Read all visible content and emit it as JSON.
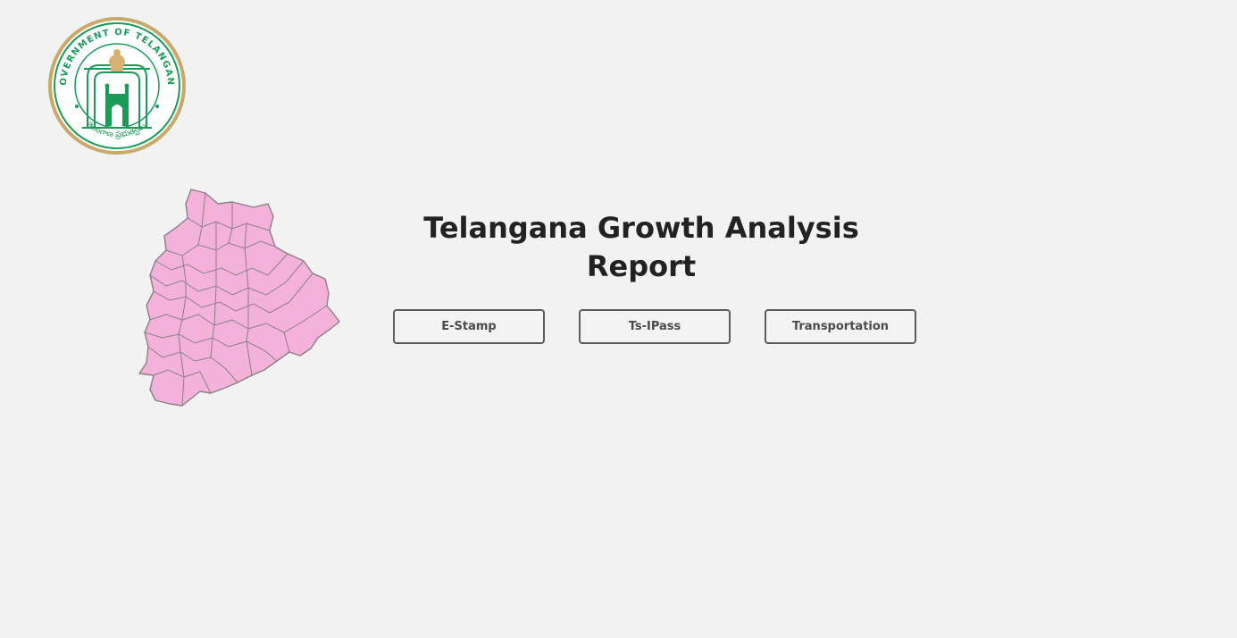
{
  "header": {
    "emblem": {
      "label": "Government of Telangana emblem",
      "text_top": "GOVERNMENT OF TELANGANA",
      "text_bottom": "తెలంగాణ ప్రభుత్వము",
      "ring_color": "#c8a96a",
      "text_color": "#1a9b57"
    }
  },
  "main": {
    "title": "Telangana Growth Analysis Report",
    "map_fill": "#f4b2da",
    "map_stroke": "#8a7f86",
    "buttons": [
      {
        "label": "E-Stamp"
      },
      {
        "label": "Ts-IPass"
      },
      {
        "label": "Transportation"
      }
    ]
  }
}
